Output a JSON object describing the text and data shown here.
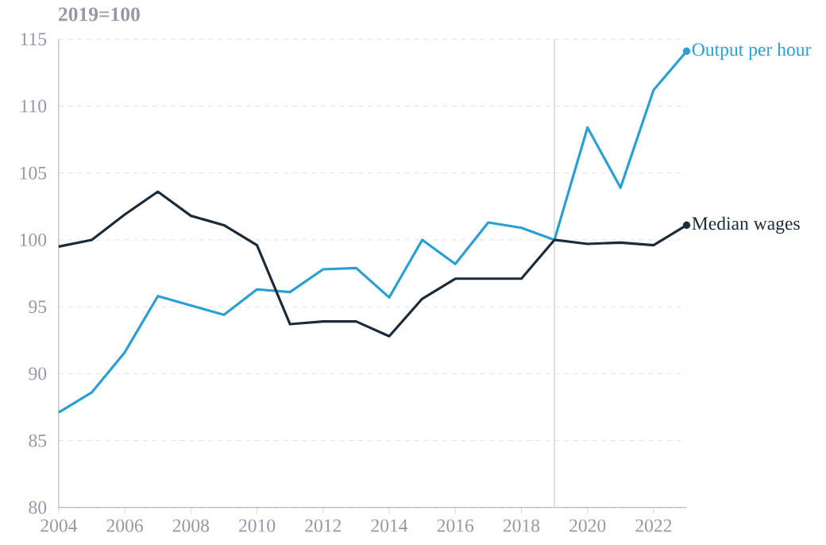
{
  "chart_data": {
    "type": "line",
    "title": "2019=100",
    "x": [
      2004,
      2005,
      2006,
      2007,
      2008,
      2009,
      2010,
      2011,
      2012,
      2013,
      2014,
      2015,
      2016,
      2017,
      2018,
      2019,
      2020,
      2021,
      2022,
      2023
    ],
    "series": [
      {
        "name": "Output per hour",
        "color": "#2a9fd4",
        "values": [
          87.1,
          88.6,
          91.6,
          95.8,
          95.1,
          94.4,
          96.3,
          96.1,
          97.8,
          97.9,
          95.7,
          100.0,
          98.2,
          101.3,
          100.9,
          100.0,
          108.4,
          103.9,
          111.2,
          114.1
        ]
      },
      {
        "name": "Median wages",
        "color": "#1c2b39",
        "values": [
          99.5,
          100.0,
          101.9,
          103.6,
          101.8,
          101.1,
          99.6,
          93.7,
          93.9,
          93.9,
          92.8,
          95.6,
          97.1,
          97.1,
          97.1,
          100.0,
          99.7,
          99.8,
          99.6,
          101.1
        ]
      }
    ],
    "xlim": [
      2004,
      2023
    ],
    "ylim": [
      80,
      115
    ],
    "xticks": [
      2004,
      2006,
      2008,
      2010,
      2012,
      2014,
      2016,
      2018,
      2020,
      2022
    ],
    "yticks": [
      80,
      85,
      90,
      95,
      100,
      105,
      110,
      115
    ],
    "ref_lines": [
      {
        "axis": "x",
        "value": 2019,
        "color": "#d5d7de"
      }
    ],
    "grid": "y",
    "line_style": "solid"
  }
}
